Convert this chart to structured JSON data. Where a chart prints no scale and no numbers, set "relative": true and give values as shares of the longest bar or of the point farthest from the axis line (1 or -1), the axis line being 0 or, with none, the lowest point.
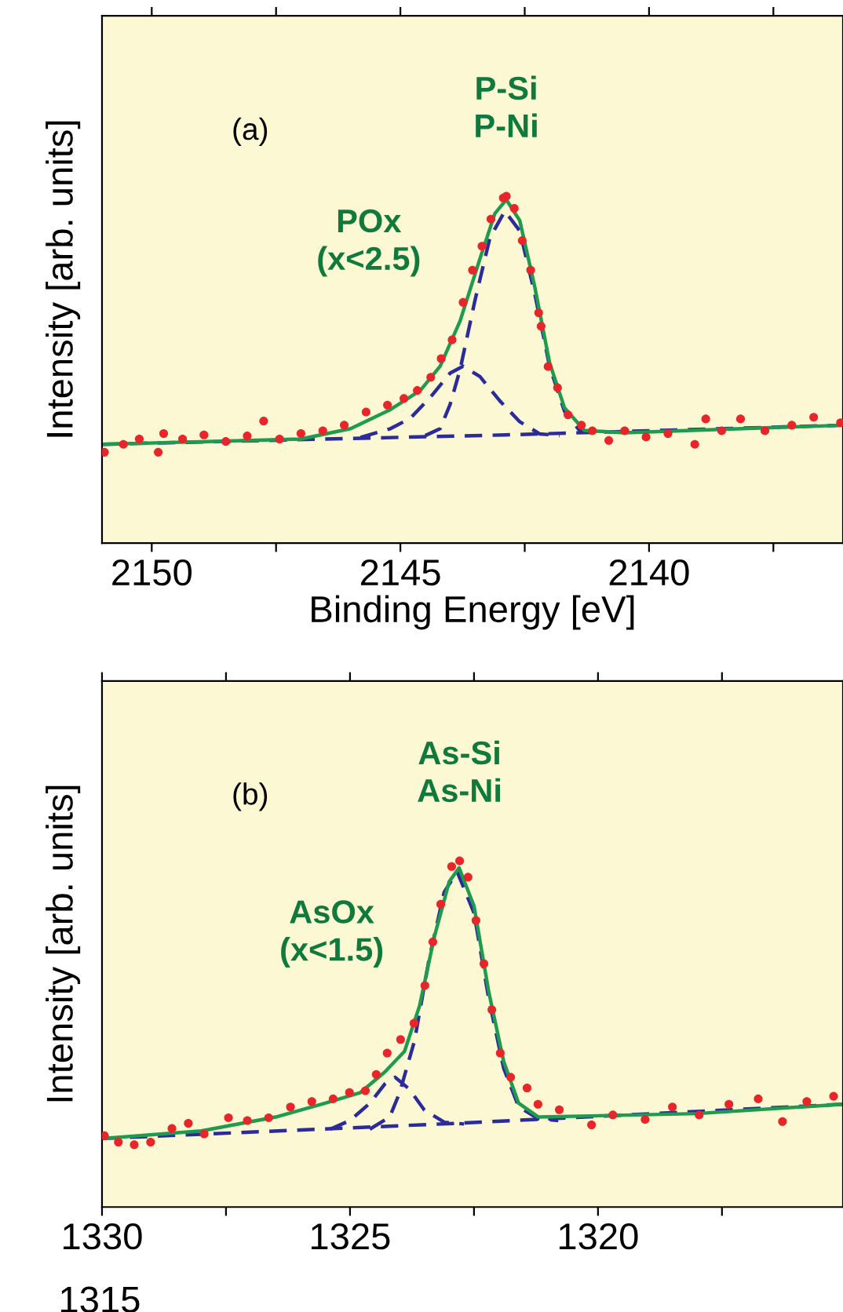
{
  "chart_data": [
    {
      "type": "scatter",
      "relative": true,
      "xlabel": "Binding Energy [eV]",
      "ylabel": "Intensity [arb. units]",
      "xlim": [
        2151,
        2136.1
      ],
      "xticks": [
        2150,
        {
          "value": 2147.5,
          "label": null
        },
        2145,
        {
          "value": 2142.5,
          "label": null
        },
        2140,
        {
          "value": 2137.5,
          "label": null
        }
      ],
      "grid": false,
      "legend": false,
      "annotations": [
        "(a)",
        {
          "text": "P-Si\nP-Ni",
          "x": 2142.87,
          "y": 1.0
        },
        "POx\n(x<2.5)"
      ],
      "series": [
        {
          "type": "line",
          "color": "#2b2b9a",
          "line_style": "dashed",
          "x": [
            2151,
            2142.9,
            2136.1
          ],
          "values": [
            0.285,
            0.312,
            0.34
          ]
        },
        {
          "type": "line",
          "color": "#2b2b9a",
          "line_style": "dashed",
          "x": [
            2145.8,
            2145.2,
            2144.8,
            2144.4,
            2144.0,
            2143.74,
            2143.4,
            2143.0,
            2142.6,
            2142.2,
            2141.8
          ],
          "values": [
            0.305,
            0.33,
            0.36,
            0.42,
            0.49,
            0.51,
            0.48,
            0.41,
            0.35,
            0.315,
            0.31
          ]
        },
        {
          "type": "line",
          "color": "#2b2b9a",
          "line_style": "dashed",
          "x": [
            2144.5,
            2144.2,
            2144.0,
            2143.8,
            2143.5,
            2143.2,
            2142.9,
            2142.6,
            2142.3,
            2142.0,
            2141.7,
            2141.4,
            2141.0
          ],
          "values": [
            0.31,
            0.33,
            0.4,
            0.5,
            0.7,
            0.88,
            0.957,
            0.9,
            0.72,
            0.51,
            0.38,
            0.325,
            0.315
          ]
        },
        {
          "type": "line",
          "color": "#1f9a4e",
          "line_style": "solid",
          "x": [
            2151,
            2147,
            2146,
            2145.2,
            2144.6,
            2144.2,
            2143.8,
            2143.4,
            2143.1,
            2142.87,
            2142.6,
            2142.3,
            2142.0,
            2141.7,
            2141.3,
            2140.5,
            2136.1
          ],
          "values": [
            0.285,
            0.3,
            0.33,
            0.385,
            0.44,
            0.51,
            0.64,
            0.82,
            0.95,
            0.99,
            0.93,
            0.74,
            0.52,
            0.39,
            0.325,
            0.318,
            0.34
          ]
        },
        {
          "color": "#e8262a",
          "marker": "circle",
          "x": [
            2150.95,
            2150.57,
            2150.25,
            2149.87,
            2149.76,
            2149.38,
            2148.95,
            2148.51,
            2148.08,
            2147.75,
            2147.43,
            2147.0,
            2146.56,
            2146.13,
            2145.69,
            2145.26,
            2144.93,
            2144.66,
            2144.39,
            2144.18,
            2143.96,
            2143.74,
            2143.55,
            2143.36,
            2143.18,
            2142.93,
            2142.87,
            2142.71,
            2142.55,
            2142.38,
            2142.22,
            2142.17,
            2142.03,
            2141.84,
            2141.63,
            2141.36,
            2141.14,
            2140.81,
            2140.49,
            2140.06,
            2139.62,
            2139.08,
            2138.86,
            2138.54,
            2138.16,
            2137.67,
            2137.13,
            2136.69,
            2136.15
          ],
          "values": [
            0.262,
            0.285,
            0.3,
            0.262,
            0.316,
            0.3,
            0.312,
            0.293,
            0.309,
            0.352,
            0.3,
            0.316,
            0.324,
            0.34,
            0.378,
            0.398,
            0.417,
            0.44,
            0.478,
            0.532,
            0.586,
            0.694,
            0.787,
            0.856,
            0.934,
            0.995,
            1.0,
            0.965,
            0.872,
            0.787,
            0.664,
            0.625,
            0.509,
            0.448,
            0.37,
            0.34,
            0.324,
            0.296,
            0.324,
            0.306,
            0.316,
            0.285,
            0.358,
            0.324,
            0.358,
            0.324,
            0.34,
            0.363,
            0.347
          ]
        }
      ]
    },
    {
      "type": "scatter",
      "relative": true,
      "ylabel": "Intensity [arb. units]",
      "xlim": [
        1330,
        1315.06
      ],
      "xticks": [
        1330,
        {
          "value": 1327.5,
          "label": null
        },
        1325,
        {
          "value": 1322.5,
          "label": null
        },
        1320,
        {
          "value": 1317.5,
          "label": null
        }
      ],
      "grid": false,
      "legend": false,
      "annotations": [
        "(b)",
        {
          "text": "As-Si\nAs-Ni",
          "x": 1322.79,
          "y": 1.0
        },
        "AsOx\n(x<1.5)",
        "1315"
      ],
      "series": [
        {
          "type": "line",
          "color": "#2b2b9a",
          "line_style": "dashed",
          "x": [
            1330,
            1322.84,
            1315.06
          ],
          "values": [
            0.198,
            0.242,
            0.297
          ]
        },
        {
          "type": "line",
          "color": "#2b2b9a",
          "line_style": "dashed",
          "x": [
            1325.4,
            1325.0,
            1324.6,
            1324.3,
            1324.09,
            1323.8,
            1323.5,
            1323.1,
            1322.7
          ],
          "values": [
            0.225,
            0.25,
            0.3,
            0.355,
            0.375,
            0.34,
            0.28,
            0.245,
            0.24
          ]
        },
        {
          "type": "line",
          "color": "#2b2b9a",
          "line_style": "dashed",
          "x": [
            1324.6,
            1324.2,
            1324.0,
            1323.7,
            1323.4,
            1323.1,
            1322.84,
            1322.5,
            1322.2,
            1321.9,
            1321.6,
            1321.2,
            1320.8
          ],
          "values": [
            0.225,
            0.26,
            0.33,
            0.48,
            0.72,
            0.91,
            0.969,
            0.85,
            0.6,
            0.4,
            0.29,
            0.255,
            0.25
          ]
        },
        {
          "type": "line",
          "color": "#1f9a4e",
          "line_style": "solid",
          "x": [
            1330,
            1328,
            1326.5,
            1325.5,
            1324.8,
            1324.3,
            1323.9,
            1323.6,
            1323.3,
            1323.0,
            1322.8,
            1322.5,
            1322.2,
            1321.9,
            1321.6,
            1321.2,
            1318,
            1315.06
          ],
          "values": [
            0.198,
            0.22,
            0.26,
            0.3,
            0.33,
            0.39,
            0.45,
            0.58,
            0.78,
            0.94,
            0.98,
            0.87,
            0.62,
            0.42,
            0.3,
            0.26,
            0.27,
            0.297
          ]
        },
        {
          "color": "#e8262a",
          "marker": "circle",
          "x": [
            1329.95,
            1329.67,
            1329.35,
            1329.02,
            1328.59,
            1328.26,
            1327.94,
            1327.45,
            1327.07,
            1326.64,
            1326.2,
            1325.77,
            1325.34,
            1325.01,
            1324.69,
            1324.47,
            1324.25,
            1323.98,
            1323.71,
            1323.49,
            1323.33,
            1323.17,
            1322.95,
            1322.79,
            1322.62,
            1322.46,
            1322.3,
            1322.14,
            1321.97,
            1321.76,
            1321.43,
            1321.21,
            1320.78,
            1320.13,
            1319.7,
            1319.05,
            1318.5,
            1317.96,
            1317.36,
            1316.77,
            1316.28,
            1315.79,
            1315.25
          ],
          "values": [
            0.206,
            0.1875,
            0.18,
            0.1875,
            0.227,
            0.242,
            0.211,
            0.258,
            0.25,
            0.258,
            0.289,
            0.305,
            0.3125,
            0.331,
            0.336,
            0.383,
            0.445,
            0.484,
            0.531,
            0.64,
            0.766,
            0.875,
            0.984,
            1.0,
            0.953,
            0.828,
            0.703,
            0.57,
            0.445,
            0.375,
            0.344,
            0.297,
            0.281,
            0.2375,
            0.266,
            0.253,
            0.289,
            0.266,
            0.297,
            0.3125,
            0.247,
            0.305,
            0.32
          ]
        }
      ]
    }
  ]
}
